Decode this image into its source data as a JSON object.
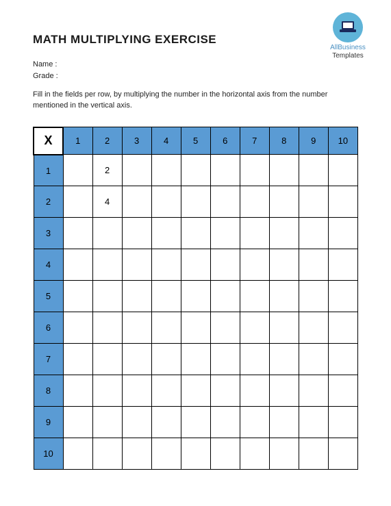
{
  "logo": {
    "line1": "AllBusiness",
    "line2": "Templates",
    "circle_bg": "#5fb4d8",
    "laptop_color": "#1a2a5c"
  },
  "title": "MATH MULTIPLYING EXERCISE",
  "meta": {
    "name_label": "Name   :",
    "grade_label": "Grade   :"
  },
  "instructions": "Fill in the fields per row, by multiplying the number in the horizontal axis from the number mentioned in the vertical axis.",
  "table": {
    "corner": "X",
    "header_color": "#5a9bd4",
    "columns": [
      "1",
      "2",
      "3",
      "4",
      "5",
      "6",
      "7",
      "8",
      "9",
      "10"
    ],
    "rows": [
      "1",
      "2",
      "3",
      "4",
      "5",
      "6",
      "7",
      "8",
      "9",
      "10"
    ],
    "cells": [
      [
        "",
        "2",
        "",
        "",
        "",
        "",
        "",
        "",
        "",
        ""
      ],
      [
        "",
        "4",
        "",
        "",
        "",
        "",
        "",
        "",
        "",
        ""
      ],
      [
        "",
        "",
        "",
        "",
        "",
        "",
        "",
        "",
        "",
        ""
      ],
      [
        "",
        "",
        "",
        "",
        "",
        "",
        "",
        "",
        "",
        ""
      ],
      [
        "",
        "",
        "",
        "",
        "",
        "",
        "",
        "",
        "",
        ""
      ],
      [
        "",
        "",
        "",
        "",
        "",
        "",
        "",
        "",
        "",
        ""
      ],
      [
        "",
        "",
        "",
        "",
        "",
        "",
        "",
        "",
        "",
        ""
      ],
      [
        "",
        "",
        "",
        "",
        "",
        "",
        "",
        "",
        "",
        ""
      ],
      [
        "",
        "",
        "",
        "",
        "",
        "",
        "",
        "",
        "",
        ""
      ],
      [
        "",
        "",
        "",
        "",
        "",
        "",
        "",
        "",
        "",
        ""
      ]
    ]
  }
}
